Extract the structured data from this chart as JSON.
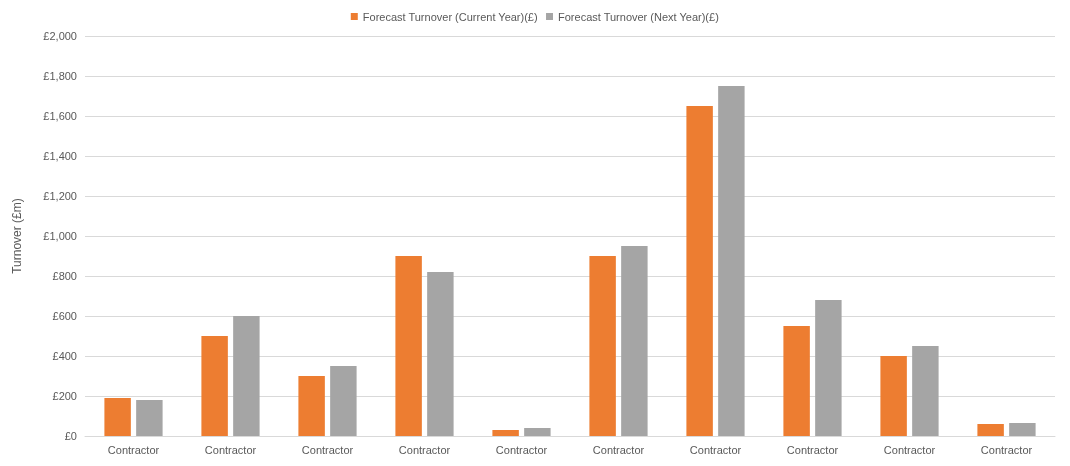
{
  "chart_data": {
    "type": "bar",
    "ylabel": "Turnover (£m)",
    "categories": [
      "Contractor",
      "Contractor",
      "Contractor",
      "Contractor",
      "Contractor",
      "Contractor",
      "Contractor",
      "Contractor",
      "Contractor",
      "Contractor"
    ],
    "series": [
      {
        "name": "Forecast Turnover (Current Year)(£)",
        "color": "#ed7d31",
        "values": [
          190,
          500,
          300,
          900,
          30,
          900,
          1650,
          550,
          400,
          60
        ]
      },
      {
        "name": "Forecast Turnover (Next Year)(£)",
        "color": "#a5a5a5",
        "values": [
          180,
          600,
          350,
          820,
          40,
          950,
          1750,
          680,
          450,
          65
        ]
      }
    ],
    "ylim": [
      0,
      2000
    ],
    "yticks": [
      {
        "value": 0,
        "label": "£0"
      },
      {
        "value": 200,
        "label": "£200"
      },
      {
        "value": 400,
        "label": "£400"
      },
      {
        "value": 600,
        "label": "£600"
      },
      {
        "value": 800,
        "label": "£800"
      },
      {
        "value": 1000,
        "label": "£1,000"
      },
      {
        "value": 1200,
        "label": "£1,200"
      },
      {
        "value": 1400,
        "label": "£1,400"
      },
      {
        "value": 1600,
        "label": "£1,600"
      },
      {
        "value": 1800,
        "label": "£1,800"
      },
      {
        "value": 2000,
        "label": "£2,000"
      }
    ],
    "grid": "y",
    "legend": "top"
  }
}
